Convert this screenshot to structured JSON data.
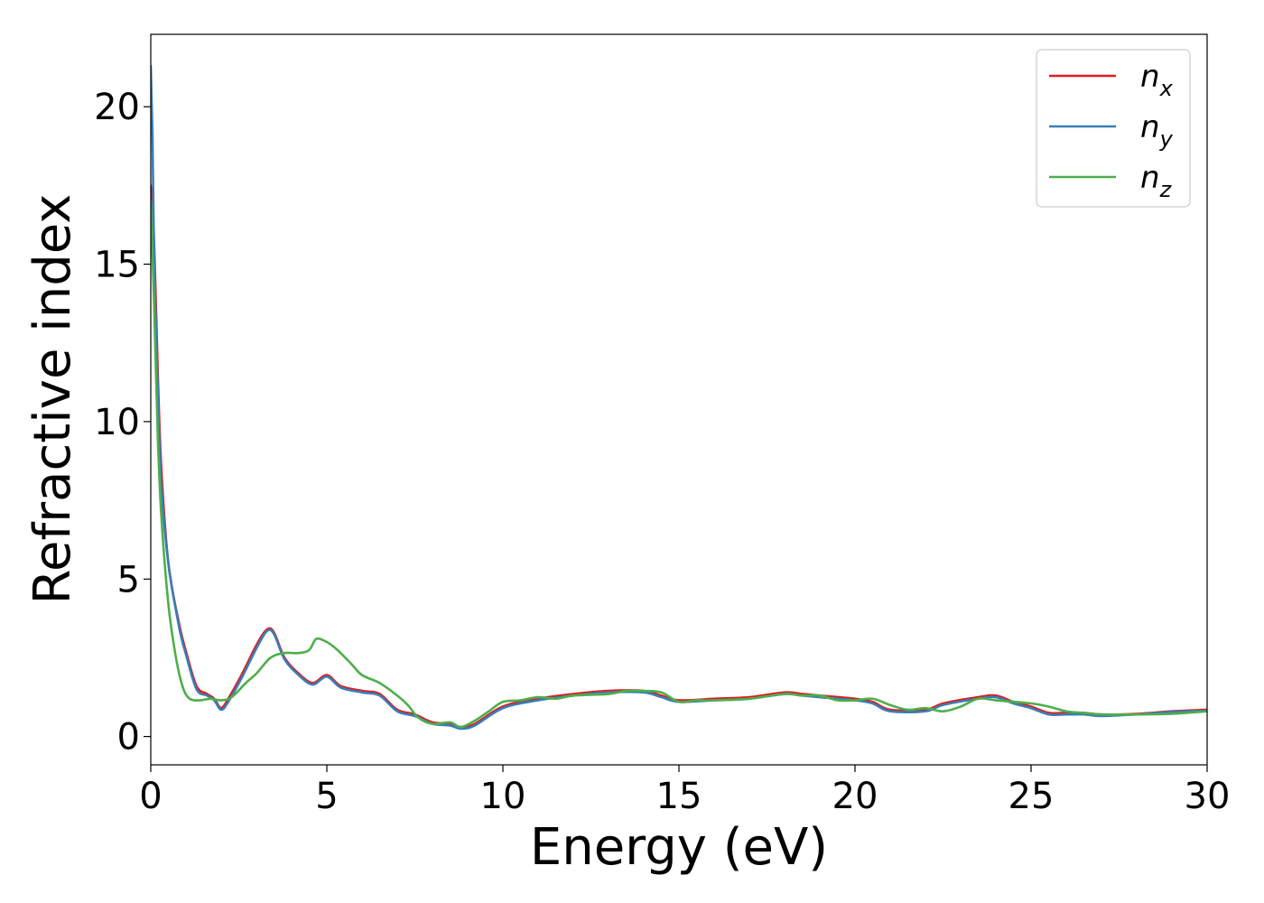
{
  "chart_data": {
    "type": "line",
    "title": "",
    "xlabel": "Energy (eV)",
    "ylabel": "Refractive index",
    "xlim": [
      0,
      30
    ],
    "ylim": [
      -0.9,
      22.3
    ],
    "xticks": [
      0,
      5,
      10,
      15,
      20,
      25,
      30
    ],
    "xtick_labels": [
      "0",
      "5",
      "10",
      "15",
      "20",
      "25",
      "30"
    ],
    "yticks": [
      0,
      5,
      10,
      15,
      20
    ],
    "ytick_labels": [
      "0",
      "5",
      "10",
      "15",
      "20"
    ],
    "grid": false,
    "legend_position": "top-right",
    "series": [
      {
        "name": "n_x",
        "legend_base": "n",
        "legend_sub": "x",
        "color": "#e41a1c",
        "x": [
          0,
          0.1,
          0.2,
          0.3,
          0.5,
          0.8,
          1.0,
          1.3,
          1.6,
          1.8,
          2.0,
          2.2,
          2.6,
          3.0,
          3.3,
          3.5,
          3.8,
          4.2,
          4.6,
          5.0,
          5.4,
          6.0,
          6.5,
          7.0,
          7.5,
          8.0,
          8.5,
          8.8,
          9.2,
          10.0,
          11.0,
          12.0,
          13.0,
          14.0,
          14.5,
          15.0,
          16.0,
          17.0,
          18.0,
          18.5,
          19.0,
          20.0,
          20.5,
          21.0,
          22.0,
          22.5,
          23.5,
          24.0,
          24.5,
          25.0,
          25.5,
          26.0,
          26.5,
          27.0,
          28.0,
          29.0,
          30.0
        ],
        "y": [
          17.5,
          15.5,
          11.5,
          8.5,
          5.5,
          3.6,
          2.7,
          1.6,
          1.35,
          1.2,
          0.9,
          1.2,
          2.0,
          2.9,
          3.4,
          3.3,
          2.5,
          2.0,
          1.7,
          1.95,
          1.6,
          1.45,
          1.35,
          0.85,
          0.7,
          0.45,
          0.4,
          0.3,
          0.4,
          0.95,
          1.2,
          1.35,
          1.45,
          1.45,
          1.3,
          1.15,
          1.2,
          1.25,
          1.4,
          1.35,
          1.3,
          1.2,
          1.1,
          0.85,
          0.85,
          1.05,
          1.25,
          1.3,
          1.1,
          0.95,
          0.75,
          0.75,
          0.75,
          0.7,
          0.72,
          0.8,
          0.85
        ]
      },
      {
        "name": "n_y",
        "legend_base": "n",
        "legend_sub": "y",
        "color": "#377eb8",
        "x": [
          0,
          0.05,
          0.1,
          0.2,
          0.3,
          0.5,
          0.8,
          1.0,
          1.3,
          1.6,
          1.8,
          2.0,
          2.2,
          2.6,
          3.0,
          3.3,
          3.5,
          3.8,
          4.2,
          4.6,
          5.0,
          5.4,
          6.0,
          6.5,
          7.0,
          7.5,
          8.0,
          8.5,
          8.8,
          9.2,
          10.0,
          11.0,
          12.0,
          13.0,
          14.0,
          14.5,
          15.0,
          16.0,
          17.0,
          18.0,
          18.5,
          19.0,
          20.0,
          20.5,
          21.0,
          22.0,
          22.5,
          23.5,
          24.0,
          24.5,
          25.0,
          25.5,
          26.0,
          26.5,
          27.0,
          28.0,
          29.0,
          30.0
        ],
        "y": [
          21.3,
          19.0,
          15.0,
          11.0,
          8.0,
          5.5,
          3.5,
          2.6,
          1.5,
          1.3,
          1.15,
          0.85,
          1.1,
          1.9,
          2.8,
          3.35,
          3.25,
          2.45,
          1.95,
          1.65,
          1.9,
          1.55,
          1.4,
          1.3,
          0.8,
          0.65,
          0.4,
          0.35,
          0.25,
          0.35,
          0.9,
          1.15,
          1.3,
          1.4,
          1.4,
          1.25,
          1.1,
          1.15,
          1.2,
          1.35,
          1.3,
          1.25,
          1.15,
          1.05,
          0.8,
          0.8,
          1.0,
          1.2,
          1.25,
          1.05,
          0.9,
          0.7,
          0.7,
          0.7,
          0.65,
          0.7,
          0.78,
          0.82
        ]
      },
      {
        "name": "n_z",
        "legend_base": "n",
        "legend_sub": "z",
        "color": "#4daf4a",
        "x": [
          0,
          0.1,
          0.2,
          0.3,
          0.5,
          0.7,
          0.9,
          1.1,
          1.4,
          1.7,
          2.0,
          2.3,
          2.7,
          3.0,
          3.4,
          3.8,
          4.2,
          4.5,
          4.7,
          5.0,
          5.3,
          5.7,
          6.0,
          6.5,
          7.0,
          7.3,
          7.6,
          8.0,
          8.5,
          8.8,
          9.2,
          9.6,
          10.0,
          10.5,
          11.0,
          11.5,
          12.0,
          13.0,
          13.5,
          14.0,
          14.5,
          15.0,
          15.5,
          16.0,
          17.0,
          18.0,
          18.5,
          19.0,
          19.5,
          20.0,
          20.5,
          21.0,
          21.5,
          22.0,
          22.5,
          23.0,
          23.5,
          24.0,
          25.0,
          25.5,
          26.0,
          26.5,
          27.0,
          28.0,
          29.0,
          30.0
        ],
        "y": [
          17.0,
          13.5,
          9.5,
          7.0,
          4.2,
          2.6,
          1.6,
          1.2,
          1.15,
          1.2,
          1.15,
          1.25,
          1.7,
          2.0,
          2.5,
          2.65,
          2.65,
          2.75,
          3.1,
          3.0,
          2.75,
          2.3,
          1.95,
          1.7,
          1.3,
          1.0,
          0.6,
          0.4,
          0.45,
          0.3,
          0.5,
          0.8,
          1.1,
          1.15,
          1.25,
          1.2,
          1.3,
          1.35,
          1.45,
          1.45,
          1.4,
          1.1,
          1.15,
          1.15,
          1.2,
          1.35,
          1.3,
          1.3,
          1.15,
          1.15,
          1.2,
          1.0,
          0.85,
          0.9,
          0.8,
          0.95,
          1.2,
          1.15,
          1.05,
          0.95,
          0.8,
          0.75,
          0.7,
          0.7,
          0.72,
          0.8
        ]
      }
    ]
  }
}
